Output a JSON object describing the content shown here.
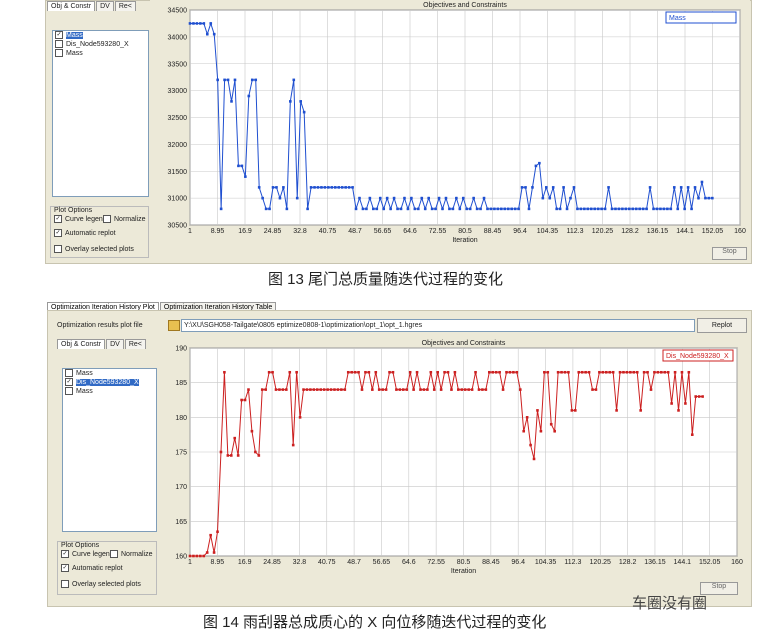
{
  "panels": [
    {
      "tabs": [
        "Obj & Constr",
        "DV",
        "Re<"
      ],
      "list_items": [
        {
          "label": "Mass",
          "checked": true
        },
        {
          "label": "Dis_Node593280_X",
          "checked": false
        },
        {
          "label": "Mass",
          "checked": false
        }
      ],
      "plot_options_title": "Plot Options",
      "options": [
        {
          "label": "Curve legend",
          "checked": true
        },
        {
          "label": "Normalize",
          "checked": false
        },
        {
          "label": "Automatic replot",
          "checked": true
        },
        {
          "label": "Overlay selected plots",
          "checked": false
        }
      ],
      "stop": "Stop",
      "caption": "图 13 尾门总质量随迭代过程的变化"
    },
    {
      "tabs": [
        "Obj & Constr",
        "DV",
        "Re<"
      ],
      "list_items": [
        {
          "label": "Mass",
          "checked": false
        },
        {
          "label": "Dis_Node593280_X",
          "checked": true
        },
        {
          "label": "Mass",
          "checked": false
        }
      ],
      "plot_options_title": "Plot Options",
      "options": [
        {
          "label": "Curve legend",
          "checked": true
        },
        {
          "label": "Normalize",
          "checked": false
        },
        {
          "label": "Automatic replot",
          "checked": true
        },
        {
          "label": "Overlay selected plots",
          "checked": false
        }
      ],
      "stop": "Stop",
      "caption": "图 14  雨刮器总成质心的 X 向位移随迭代过程的变化"
    }
  ],
  "window": {
    "tabs": [
      "Optimization Iteration History Plot",
      "Optimization Iteration History Table"
    ],
    "file_label": "Optimization results plot file",
    "file_path": "Y:\\XU\\SGH058-Tailgate\\0805 eptimize0808-1\\optimization\\opt_1\\opt_1.hgres",
    "replot": "Replot"
  },
  "watermark": "车圈没有圈",
  "chart_data": [
    {
      "type": "line",
      "title": "Objectives and Constraints",
      "x_label": "Iteration",
      "grid": true,
      "legend": "top-right",
      "xlim": [
        1,
        160
      ],
      "xticks": [
        1,
        8.95,
        16.9,
        24.85,
        32.8,
        40.75,
        48.7,
        56.65,
        64.6,
        72.55,
        80.5,
        88.45,
        96.4,
        104.35,
        112.3,
        120.25,
        128.2,
        136.15,
        144.1,
        152.05,
        160
      ],
      "ylim": [
        30500,
        34500
      ],
      "yticks": [
        30500,
        31000,
        31500,
        32000,
        32500,
        33000,
        33500,
        34000,
        34500
      ],
      "x": [
        1,
        2,
        3,
        4,
        5,
        6,
        7,
        8,
        9,
        10,
        11,
        12,
        13,
        14,
        15,
        16,
        17,
        18,
        19,
        20,
        21,
        22,
        23,
        24,
        25,
        26,
        27,
        28,
        29,
        30,
        31,
        32,
        33,
        34,
        35,
        36,
        37,
        38,
        39,
        40,
        41,
        42,
        43,
        44,
        45,
        46,
        47,
        48,
        49,
        50,
        51,
        52,
        53,
        54,
        55,
        56,
        57,
        58,
        59,
        60,
        61,
        62,
        63,
        64,
        65,
        66,
        67,
        68,
        69,
        70,
        71,
        72,
        73,
        74,
        75,
        76,
        77,
        78,
        79,
        80,
        81,
        82,
        83,
        84,
        85,
        86,
        87,
        88,
        89,
        90,
        91,
        92,
        93,
        94,
        95,
        96,
        97,
        98,
        99,
        100,
        101,
        102,
        103,
        104,
        105,
        106,
        107,
        108,
        109,
        110,
        111,
        112,
        113,
        114,
        115,
        116,
        117,
        118,
        119,
        120,
        121,
        122,
        123,
        124,
        125,
        126,
        127,
        128,
        129,
        130,
        131,
        132,
        133,
        134,
        135,
        136,
        137,
        138,
        139,
        140,
        141,
        142,
        143,
        144,
        145,
        146,
        147,
        148,
        149,
        150,
        151,
        152
      ],
      "series": [
        {
          "name": "Mass",
          "color": "#1f4fd0",
          "values": [
            34250,
            34250,
            34250,
            34250,
            34250,
            34050,
            34250,
            34050,
            33200,
            30800,
            33200,
            33200,
            32800,
            33200,
            31600,
            31600,
            31400,
            32900,
            33200,
            33200,
            31200,
            31000,
            30800,
            30800,
            31200,
            31200,
            31000,
            31200,
            30800,
            32800,
            33200,
            31000,
            32800,
            32600,
            30800,
            31200,
            31200,
            31200,
            31200,
            31200,
            31200,
            31200,
            31200,
            31200,
            31200,
            31200,
            31200,
            31200,
            30800,
            31000,
            30800,
            30800,
            31000,
            30800,
            30800,
            31000,
            30800,
            31000,
            30800,
            31000,
            30800,
            30800,
            31000,
            30800,
            31000,
            30800,
            30800,
            31000,
            30800,
            31000,
            30800,
            30800,
            31000,
            30800,
            31000,
            30800,
            30800,
            31000,
            30800,
            31000,
            30800,
            30800,
            31000,
            30800,
            30800,
            31000,
            30800,
            30800,
            30800,
            30800,
            30800,
            30800,
            30800,
            30800,
            30800,
            30800,
            31200,
            31200,
            30800,
            31200,
            31600,
            31650,
            31000,
            31200,
            31000,
            31200,
            30800,
            30800,
            31200,
            30800,
            31000,
            31200,
            30800,
            30800,
            30800,
            30800,
            30800,
            30800,
            30800,
            30800,
            30800,
            31200,
            30800,
            30800,
            30800,
            30800,
            30800,
            30800,
            30800,
            30800,
            30800,
            30800,
            30800,
            31200,
            30800,
            30800,
            30800,
            30800,
            30800,
            30800,
            31200,
            30800,
            31200,
            30800,
            31200,
            30800,
            31200,
            31000,
            31300,
            31000,
            31000,
            31000
          ]
        }
      ]
    },
    {
      "type": "line",
      "title": "Objectives and Constraints",
      "x_label": "Iteration",
      "grid": true,
      "legend": "top-right",
      "xlim": [
        1,
        160
      ],
      "xticks": [
        1,
        8.95,
        16.9,
        24.85,
        32.8,
        40.75,
        48.7,
        56.65,
        64.6,
        72.55,
        80.5,
        88.45,
        96.4,
        104.35,
        112.3,
        120.25,
        128.2,
        136.15,
        144.1,
        152.05,
        160
      ],
      "ylim": [
        160,
        190
      ],
      "yticks": [
        160,
        165,
        170,
        175,
        180,
        185,
        190
      ],
      "x": [
        1,
        2,
        3,
        4,
        5,
        6,
        7,
        8,
        9,
        10,
        11,
        12,
        13,
        14,
        15,
        16,
        17,
        18,
        19,
        20,
        21,
        22,
        23,
        24,
        25,
        26,
        27,
        28,
        29,
        30,
        31,
        32,
        33,
        34,
        35,
        36,
        37,
        38,
        39,
        40,
        41,
        42,
        43,
        44,
        45,
        46,
        47,
        48,
        49,
        50,
        51,
        52,
        53,
        54,
        55,
        56,
        57,
        58,
        59,
        60,
        61,
        62,
        63,
        64,
        65,
        66,
        67,
        68,
        69,
        70,
        71,
        72,
        73,
        74,
        75,
        76,
        77,
        78,
        79,
        80,
        81,
        82,
        83,
        84,
        85,
        86,
        87,
        88,
        89,
        90,
        91,
        92,
        93,
        94,
        95,
        96,
        97,
        98,
        99,
        100,
        101,
        102,
        103,
        104,
        105,
        106,
        107,
        108,
        109,
        110,
        111,
        112,
        113,
        114,
        115,
        116,
        117,
        118,
        119,
        120,
        121,
        122,
        123,
        124,
        125,
        126,
        127,
        128,
        129,
        130,
        131,
        132,
        133,
        134,
        135,
        136,
        137,
        138,
        139,
        140,
        141,
        142,
        143,
        144,
        145,
        146,
        147,
        148,
        149,
        150
      ],
      "series": [
        {
          "name": "Dis_Node593280_X",
          "color": "#cc2020",
          "values": [
            160,
            160,
            160,
            160,
            160,
            160.5,
            163,
            160.5,
            163.5,
            175,
            186.5,
            174.5,
            174.5,
            177,
            174.5,
            182.5,
            182.5,
            184,
            178,
            175,
            174.5,
            184,
            184,
            186.5,
            186.5,
            184,
            184,
            184,
            184,
            186.5,
            176,
            186.5,
            180,
            184,
            184,
            184,
            184,
            184,
            184,
            184,
            184,
            184,
            184,
            184,
            184,
            184,
            186.5,
            186.5,
            186.5,
            186.5,
            184,
            186.5,
            186.5,
            184,
            186.5,
            184,
            184,
            184,
            186.5,
            186.5,
            184,
            184,
            184,
            184,
            186.5,
            184,
            186.5,
            184,
            184,
            184,
            186.5,
            184,
            186.5,
            184,
            186.5,
            186.5,
            184,
            186.5,
            184,
            184,
            184,
            184,
            184,
            186.5,
            184,
            184,
            184,
            186.5,
            186.5,
            186.5,
            186.5,
            184,
            186.5,
            186.5,
            186.5,
            186.5,
            184,
            178,
            180,
            176,
            174,
            181,
            178,
            186.5,
            186.5,
            179,
            178,
            186.5,
            186.5,
            186.5,
            186.5,
            181,
            181,
            186.5,
            186.5,
            186.5,
            186.5,
            184,
            184,
            186.5,
            186.5,
            186.5,
            186.5,
            186.5,
            181,
            186.5,
            186.5,
            186.5,
            186.5,
            186.5,
            186.5,
            181,
            186.5,
            186.5,
            184,
            186.5,
            186.5,
            186.5,
            186.5,
            186.5,
            182,
            186.5,
            181,
            186.5,
            182,
            186.5,
            177.5,
            183,
            183,
            183
          ]
        }
      ]
    }
  ]
}
